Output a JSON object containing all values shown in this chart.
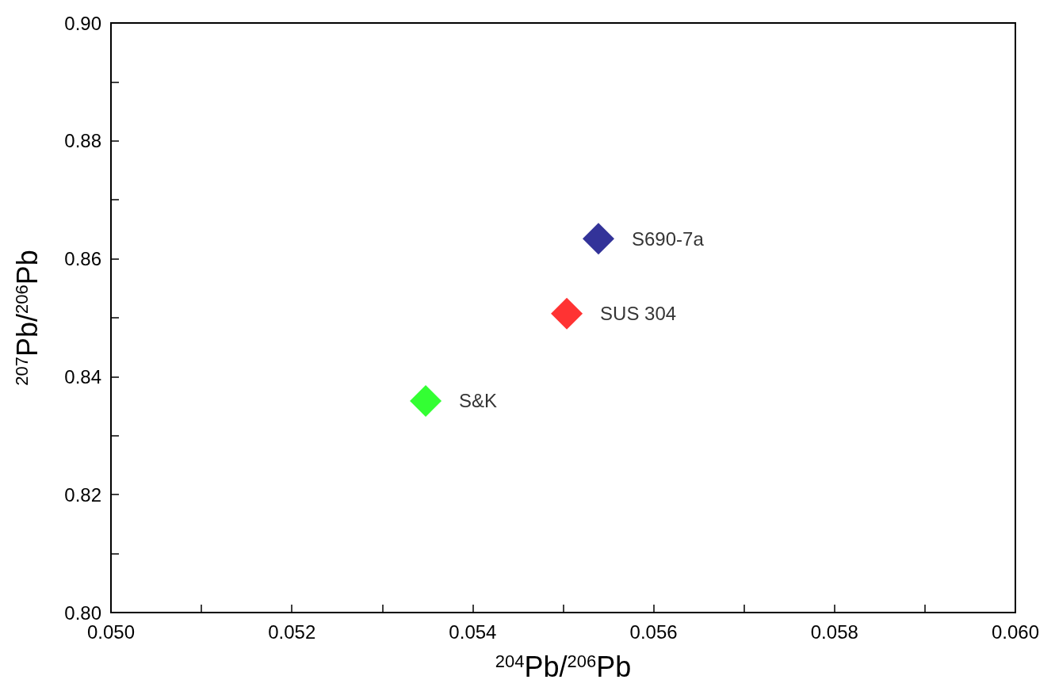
{
  "chart_data": {
    "type": "scatter",
    "xlabel": "$^{204}$Pb/$^{206}$Pb",
    "ylabel": "$^{207}$Pb/$^{206}$Pb",
    "series": [
      {
        "name": "S690-7a",
        "color": "#000080",
        "x": [
          0.05539
        ],
        "values": [
          0.8634
        ]
      },
      {
        "name": "SUS 304",
        "color": "#ff0000",
        "x": [
          0.05504
        ],
        "values": [
          0.8507
        ]
      },
      {
        "name": "S&K",
        "color": "#00ff00",
        "x": [
          0.05348
        ],
        "values": [
          0.8359
        ]
      }
    ],
    "xlim": [
      0.05,
      0.06
    ],
    "xticks": [
      {
        "value": 0.05,
        "label": "0.050"
      },
      {
        "value": 0.051,
        "label": null
      },
      0.052,
      {
        "value": 0.053,
        "label": null
      },
      0.054,
      {
        "value": 0.055,
        "label": null
      },
      0.056,
      {
        "value": 0.057,
        "label": null
      },
      0.058,
      {
        "value": 0.059,
        "label": null
      },
      {
        "value": 0.06,
        "label": "0.060"
      }
    ],
    "ylim": [
      0.8,
      0.9
    ],
    "yticks": [
      {
        "value": 0.8,
        "label": "0.80"
      },
      {
        "value": 0.81,
        "label": null
      },
      0.82,
      {
        "value": 0.83,
        "label": null
      },
      0.84,
      {
        "value": 0.85,
        "label": null
      },
      0.86,
      {
        "value": 0.87,
        "label": null
      },
      0.88,
      {
        "value": 0.89,
        "label": null
      },
      {
        "value": 0.9,
        "label": "0.90"
      }
    ],
    "grid": false,
    "legend": false,
    "marker": "diamond"
  }
}
